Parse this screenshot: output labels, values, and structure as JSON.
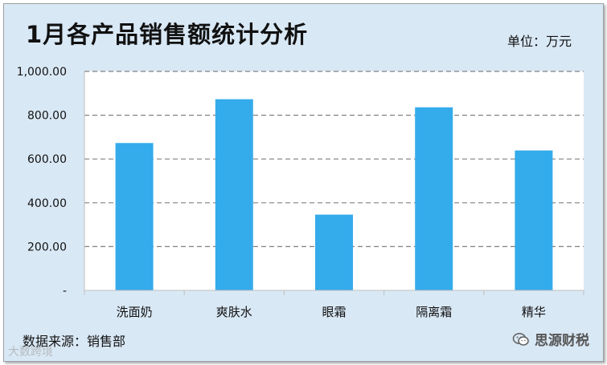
{
  "title": "1月各产品销售额统计分析",
  "unit": "单位：万元",
  "source": "数据来源：销售部",
  "watermark": {
    "left": "大数跨境",
    "right": "思源财税",
    "icon": "wechat-icon"
  },
  "colors": {
    "bar": "#34ABEB",
    "background": "#d9e8f5",
    "plot": "#ffffff",
    "grid": "#808080"
  },
  "chart_data": {
    "type": "bar",
    "categories": [
      "洗面奶",
      "爽肤水",
      "眼霜",
      "隔离霜",
      "精华"
    ],
    "values": [
      673,
      873,
      346,
      836,
      639
    ],
    "ylim": [
      0,
      1000
    ],
    "yticks": [
      0,
      200,
      400,
      600,
      800,
      1000
    ],
    "ytick_labels": [
      "-",
      "200.00",
      "400.00",
      "600.00",
      "800.00",
      "1,000.00"
    ],
    "grid": true,
    "grid_style": "dashed",
    "legend": false
  }
}
